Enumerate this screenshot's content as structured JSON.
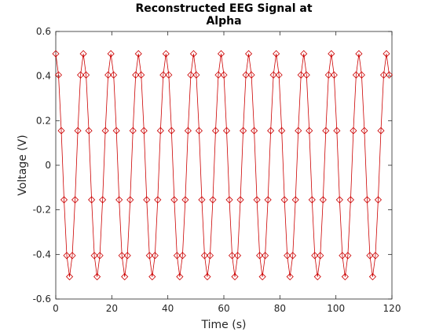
{
  "chart_data": {
    "type": "line",
    "title": [
      "Reconstructed EEG Signal at",
      "Alpha"
    ],
    "xlabel": "Time (s)",
    "ylabel": "Voltage (V)",
    "xlim": [
      0,
      120
    ],
    "ylim": [
      -0.6,
      0.6
    ],
    "xticks": [
      0,
      20,
      40,
      60,
      80,
      100,
      120
    ],
    "yticks": [
      -0.6,
      -0.4,
      -0.2,
      0,
      0.2,
      0.4,
      0.6
    ],
    "grid": false,
    "series": [
      {
        "name": "EEG",
        "color": "#cc0000",
        "marker": "diamond",
        "x": [
          0,
          0.98,
          1.97,
          2.95,
          3.93,
          4.92,
          5.9,
          6.89,
          7.87,
          8.85,
          9.84,
          10.82,
          11.8,
          12.79,
          13.77,
          14.75,
          15.74,
          16.72,
          17.7,
          18.69,
          19.67,
          20.66,
          21.64,
          22.62,
          23.61,
          24.59,
          25.57,
          26.56,
          27.54,
          28.52,
          29.51,
          30.49,
          31.48,
          32.46,
          33.44,
          34.43,
          35.41,
          36.39,
          37.38,
          38.36,
          39.34,
          40.33,
          41.31,
          42.3,
          43.28,
          44.26,
          45.25,
          46.23,
          47.21,
          48.2,
          49.18,
          50.16,
          51.15,
          52.13,
          53.11,
          54.1,
          55.08,
          56.07,
          57.05,
          58.03,
          59.02,
          60.0,
          60.98,
          61.97,
          62.95,
          63.93,
          64.92,
          65.9,
          66.89,
          67.87,
          68.85,
          69.84,
          70.82,
          71.8,
          72.79,
          73.77,
          74.75,
          75.74,
          76.72,
          77.7,
          78.69,
          79.67,
          80.66,
          81.64,
          82.62,
          83.61,
          84.59,
          85.57,
          86.56,
          87.54,
          88.52,
          89.51,
          90.49,
          91.48,
          92.46,
          93.44,
          94.43,
          95.41,
          96.39,
          97.38,
          98.36,
          99.34,
          100.33,
          101.31,
          102.3,
          103.28,
          104.26,
          105.25,
          106.23,
          107.21,
          108.2,
          109.18,
          110.16,
          111.15,
          112.13,
          113.11,
          114.1,
          115.08,
          116.07,
          117.05,
          118.03,
          119.02
        ],
        "values": [
          0.5,
          0.405,
          0.155,
          -0.155,
          -0.405,
          -0.5,
          -0.405,
          -0.155,
          0.155,
          0.405,
          0.5,
          0.405,
          0.155,
          -0.155,
          -0.405,
          -0.5,
          -0.405,
          -0.155,
          0.155,
          0.405,
          0.5,
          0.405,
          0.155,
          -0.155,
          -0.405,
          -0.5,
          -0.405,
          -0.155,
          0.155,
          0.405,
          0.5,
          0.405,
          0.155,
          -0.155,
          -0.405,
          -0.5,
          -0.405,
          -0.155,
          0.155,
          0.405,
          0.5,
          0.405,
          0.155,
          -0.155,
          -0.405,
          -0.5,
          -0.405,
          -0.155,
          0.155,
          0.405,
          0.5,
          0.405,
          0.155,
          -0.155,
          -0.405,
          -0.5,
          -0.405,
          -0.155,
          0.155,
          0.405,
          0.5,
          0.405,
          0.155,
          -0.155,
          -0.405,
          -0.5,
          -0.405,
          -0.155,
          0.155,
          0.405,
          0.5,
          0.405,
          0.155,
          -0.155,
          -0.405,
          -0.5,
          -0.405,
          -0.155,
          0.155,
          0.405,
          0.5,
          0.405,
          0.155,
          -0.155,
          -0.405,
          -0.5,
          -0.405,
          -0.155,
          0.155,
          0.405,
          0.5,
          0.405,
          0.155,
          -0.155,
          -0.405,
          -0.5,
          -0.405,
          -0.155,
          0.155,
          0.405,
          0.5,
          0.405,
          0.155,
          -0.155,
          -0.405,
          -0.5,
          -0.405,
          -0.155,
          0.155,
          0.405,
          0.5,
          0.405,
          0.155,
          -0.155,
          -0.405,
          -0.5,
          -0.405,
          -0.155,
          0.155,
          0.405,
          0.5,
          0.405
        ]
      }
    ]
  }
}
